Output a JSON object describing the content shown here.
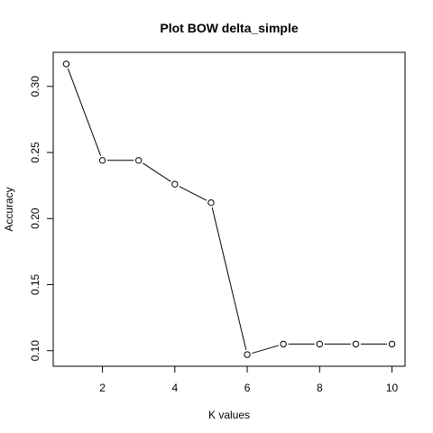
{
  "chart_data": {
    "type": "line",
    "title": "Plot BOW delta_simple",
    "xlabel": "K values",
    "ylabel": "Accuracy",
    "x": [
      1,
      2,
      3,
      4,
      5,
      6,
      7,
      8,
      9,
      10
    ],
    "series": [
      {
        "values": [
          0.317,
          0.244,
          0.244,
          0.226,
          0.212,
          0.097,
          0.105,
          0.105,
          0.105,
          0.105
        ]
      }
    ],
    "xlim": [
      0.64,
      10.36
    ],
    "ylim": [
      0.0882,
      0.3258
    ],
    "xticks": [
      2,
      4,
      6,
      8,
      10
    ],
    "yticks": [
      0.1,
      0.15,
      0.2,
      0.25,
      0.3
    ],
    "ytick_labels": [
      "0.10",
      "0.15",
      "0.20",
      "0.25",
      "0.30"
    ],
    "grid": false,
    "legend": "none",
    "markers": "open-circle",
    "colors": {
      "line": "#000000",
      "marker_fill": "#ffffff",
      "background": "#ffffff"
    }
  }
}
